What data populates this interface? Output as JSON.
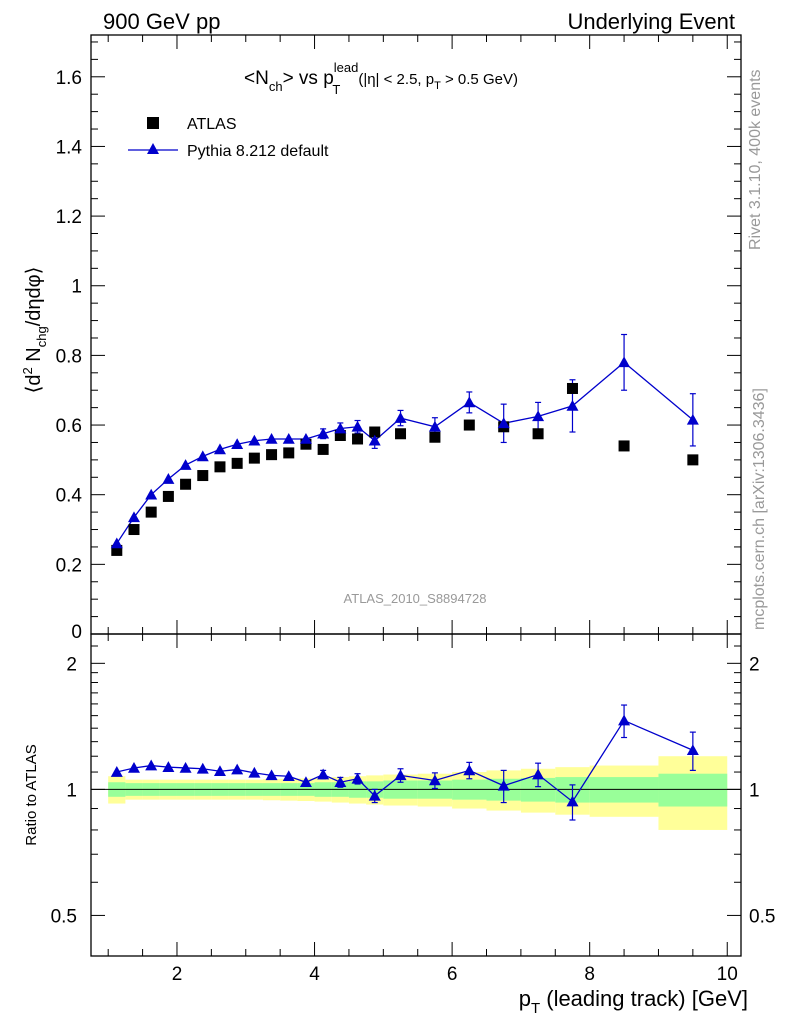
{
  "header": {
    "left": "900 GeV pp",
    "right": "Underlying Event"
  },
  "main_title": {
    "prefix": "<N",
    "sub1": "ch",
    "mid": "> vs p",
    "sup": "lead",
    "sub2": "T",
    "cond_a": "(|η| < 2.5, p",
    "cond_sub": "T",
    "cond_b": " > 0.5 GeV)"
  },
  "ylabel_main": {
    "a": "⟨d",
    "sup": "2",
    "b": " N",
    "sub": "chg",
    "c": "/dηdφ⟩"
  },
  "ylabel_ratio": "Ratio to ATLAS",
  "xlabel": {
    "p": "p",
    "sub": "T",
    "rest": " (leading track) [GeV]"
  },
  "side_text": {
    "rivet": "Rivet 3.1.10,  400k events",
    "mcplots": "mcplots.cern.ch [arXiv:1306.3436]"
  },
  "watermark": "ATLAS_2010_S8894728",
  "legend": [
    {
      "label": "ATLAS",
      "marker": "square",
      "color": "#000000"
    },
    {
      "label": "Pythia 8.212 default",
      "marker": "triangle",
      "color": "#0000cc"
    }
  ],
  "colors": {
    "data": "#000000",
    "mc": "#0000cc",
    "band_stat": "#99ff99",
    "band_total": "#ffff99"
  },
  "chart_data": [
    {
      "type": "scatter",
      "title": "<Nch> vs pT lead (|η| < 2.5, pT > 0.5 GeV)",
      "xlabel": "pT (leading track) [GeV]",
      "ylabel": "⟨d2 Nchg/dηdφ⟩",
      "xlim": [
        0.75,
        10.2
      ],
      "ylim": [
        0,
        1.72
      ],
      "x_ticks": [
        "2",
        "4",
        "6",
        "8",
        "10"
      ],
      "y_ticks": [
        "0",
        "0.2",
        "0.4",
        "0.6",
        "0.8",
        "1",
        "1.2",
        "1.4",
        "1.6"
      ],
      "series": [
        {
          "name": "ATLAS",
          "x": [
            1.125,
            1.375,
            1.625,
            1.875,
            2.125,
            2.375,
            2.625,
            2.875,
            3.125,
            3.375,
            3.625,
            3.875,
            4.125,
            4.375,
            4.625,
            4.875,
            5.25,
            5.75,
            6.25,
            6.75,
            7.25,
            7.75,
            8.5,
            9.5
          ],
          "values": [
            0.24,
            0.3,
            0.35,
            0.395,
            0.43,
            0.455,
            0.48,
            0.49,
            0.505,
            0.515,
            0.52,
            0.545,
            0.53,
            0.57,
            0.56,
            0.58,
            0.575,
            0.565,
            0.6,
            0.595,
            0.575,
            0.705,
            0.54,
            0.5
          ]
        },
        {
          "name": "Pythia 8.212 default",
          "x": [
            1.125,
            1.375,
            1.625,
            1.875,
            2.125,
            2.375,
            2.625,
            2.875,
            3.125,
            3.375,
            3.625,
            3.875,
            4.125,
            4.375,
            4.625,
            4.875,
            5.25,
            5.75,
            6.25,
            6.75,
            7.25,
            7.75,
            8.5,
            9.5
          ],
          "values": [
            0.26,
            0.335,
            0.4,
            0.445,
            0.485,
            0.51,
            0.53,
            0.545,
            0.555,
            0.56,
            0.56,
            0.56,
            0.575,
            0.59,
            0.595,
            0.555,
            0.62,
            0.595,
            0.665,
            0.605,
            0.625,
            0.655,
            0.78,
            0.615
          ],
          "errors": [
            0.005,
            0.005,
            0.006,
            0.006,
            0.007,
            0.007,
            0.008,
            0.008,
            0.009,
            0.009,
            0.01,
            0.012,
            0.014,
            0.016,
            0.018,
            0.022,
            0.022,
            0.026,
            0.03,
            0.055,
            0.04,
            0.075,
            0.08,
            0.075
          ]
        }
      ]
    },
    {
      "type": "scatter",
      "title": "Ratio to ATLAS",
      "xlabel": "pT (leading track) [GeV]",
      "ylabel": "Ratio to ATLAS",
      "xlim": [
        0.75,
        10.2
      ],
      "ylim": [
        0.4,
        2.35
      ],
      "y_scale": "log",
      "x_ticks": [
        "2",
        "4",
        "6",
        "8",
        "10"
      ],
      "y_ticks": [
        "0.5",
        "1",
        "2"
      ],
      "reference_line": 1,
      "series": [
        {
          "name": "Pythia 8.212 default / ATLAS",
          "x": [
            1.125,
            1.375,
            1.625,
            1.875,
            2.125,
            2.375,
            2.625,
            2.875,
            3.125,
            3.375,
            3.625,
            3.875,
            4.125,
            4.375,
            4.625,
            4.875,
            5.25,
            5.75,
            6.25,
            6.75,
            7.25,
            7.75,
            8.5,
            9.5
          ],
          "values": [
            1.1,
            1.125,
            1.14,
            1.13,
            1.125,
            1.12,
            1.105,
            1.115,
            1.095,
            1.08,
            1.075,
            1.04,
            1.085,
            1.04,
            1.06,
            0.965,
            1.08,
            1.05,
            1.11,
            1.02,
            1.085,
            0.935,
            1.46,
            1.24
          ],
          "errors": [
            0.01,
            0.01,
            0.012,
            0.012,
            0.013,
            0.013,
            0.014,
            0.014,
            0.015,
            0.015,
            0.017,
            0.02,
            0.025,
            0.028,
            0.03,
            0.035,
            0.04,
            0.045,
            0.05,
            0.09,
            0.07,
            0.09,
            0.13,
            0.13
          ]
        },
        {
          "name": "ATLAS stat. uncertainty (green band)",
          "x_edges": [
            1.0,
            1.25,
            1.5,
            1.75,
            2.0,
            2.25,
            2.5,
            2.75,
            3.0,
            3.25,
            3.5,
            3.75,
            4.0,
            4.25,
            4.5,
            4.75,
            5.0,
            5.5,
            6.0,
            6.5,
            7.0,
            7.5,
            8.0,
            9.0,
            10.0
          ],
          "half_width": [
            0.04,
            0.035,
            0.035,
            0.035,
            0.035,
            0.035,
            0.035,
            0.035,
            0.035,
            0.035,
            0.035,
            0.035,
            0.04,
            0.04,
            0.045,
            0.045,
            0.05,
            0.05,
            0.055,
            0.06,
            0.065,
            0.07,
            0.07,
            0.09
          ]
        },
        {
          "name": "ATLAS total uncertainty (yellow band)",
          "x_edges": [
            1.0,
            1.25,
            1.5,
            1.75,
            2.0,
            2.25,
            2.5,
            2.75,
            3.0,
            3.25,
            3.5,
            3.75,
            4.0,
            4.25,
            4.5,
            4.75,
            5.0,
            5.5,
            6.0,
            6.5,
            7.0,
            7.5,
            8.0,
            9.0,
            10.0
          ],
          "half_width": [
            0.075,
            0.055,
            0.055,
            0.055,
            0.055,
            0.055,
            0.055,
            0.055,
            0.055,
            0.058,
            0.06,
            0.062,
            0.065,
            0.07,
            0.075,
            0.08,
            0.085,
            0.09,
            0.1,
            0.11,
            0.12,
            0.13,
            0.14,
            0.2
          ]
        }
      ]
    }
  ]
}
